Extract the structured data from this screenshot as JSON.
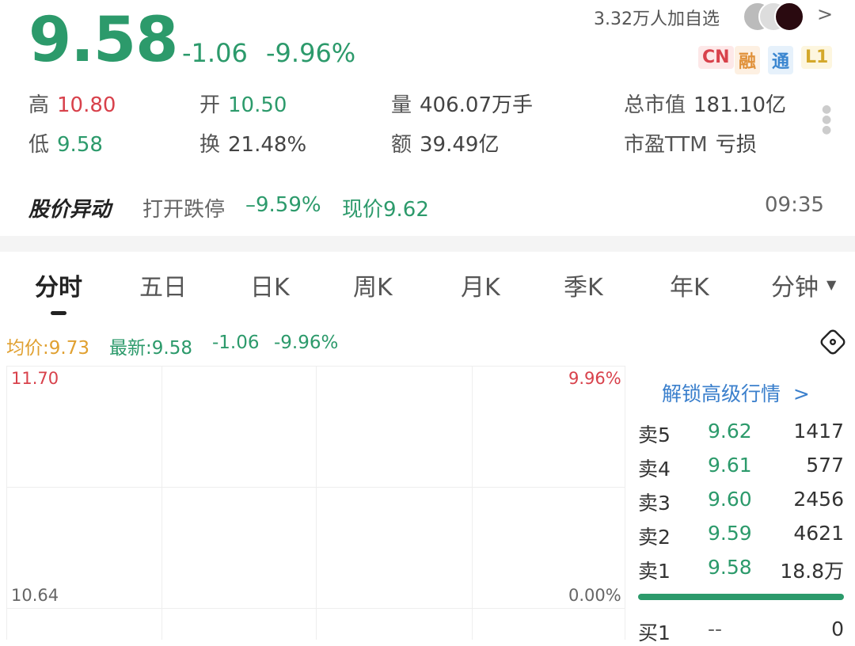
{
  "quote": {
    "price": "9.58",
    "change": "-1.06",
    "change_pct": "-9.96%"
  },
  "watchers": "3.32万人加自选",
  "tags": [
    "CN",
    "融",
    "通",
    "L1"
  ],
  "stats": [
    {
      "k": "高",
      "v": "10.80",
      "color": "red"
    },
    {
      "k": "开",
      "v": "10.50",
      "color": "green"
    },
    {
      "k": "量",
      "v": "406.07万手",
      "color": "gray"
    },
    {
      "k": "总市值",
      "v": "181.10亿",
      "color": "gray"
    },
    {
      "k": "低",
      "v": "9.58",
      "color": "green"
    },
    {
      "k": "换",
      "v": "21.48%",
      "color": "gray"
    },
    {
      "k": "额",
      "v": "39.49亿",
      "color": "gray"
    },
    {
      "k": "市盈TTM",
      "v": "亏损",
      "color": "gray"
    }
  ],
  "alert": {
    "title": "股价异动",
    "text": "打开跌停",
    "pct": "–9.59%",
    "now": "现价9.62",
    "time": "09:35"
  },
  "tabs": [
    "分时",
    "五日",
    "日K",
    "周K",
    "月K",
    "季K",
    "年K",
    "分钟"
  ],
  "legend": {
    "avg": "均价:9.73",
    "latest": "最新:9.58",
    "chg": "-1.06",
    "pct": "-9.96%"
  },
  "axis": {
    "top_price": "11.70",
    "top_pct": "9.96%",
    "mid_price": "10.64",
    "mid_pct": "0.00%"
  },
  "orderbook": {
    "unlock": "解锁高级行情",
    "asks": [
      {
        "l": "卖5",
        "p": "9.62",
        "v": "1417"
      },
      {
        "l": "卖4",
        "p": "9.61",
        "v": "577"
      },
      {
        "l": "卖3",
        "p": "9.60",
        "v": "2456"
      },
      {
        "l": "卖2",
        "p": "9.59",
        "v": "4621"
      },
      {
        "l": "卖1",
        "p": "9.58",
        "v": "18.8万"
      }
    ],
    "bids": [
      {
        "l": "买1",
        "p": "--",
        "v": "0"
      }
    ]
  },
  "colors": {
    "down": "#2c9a6b",
    "up": "#d8414b",
    "avg": "#e0a030"
  }
}
